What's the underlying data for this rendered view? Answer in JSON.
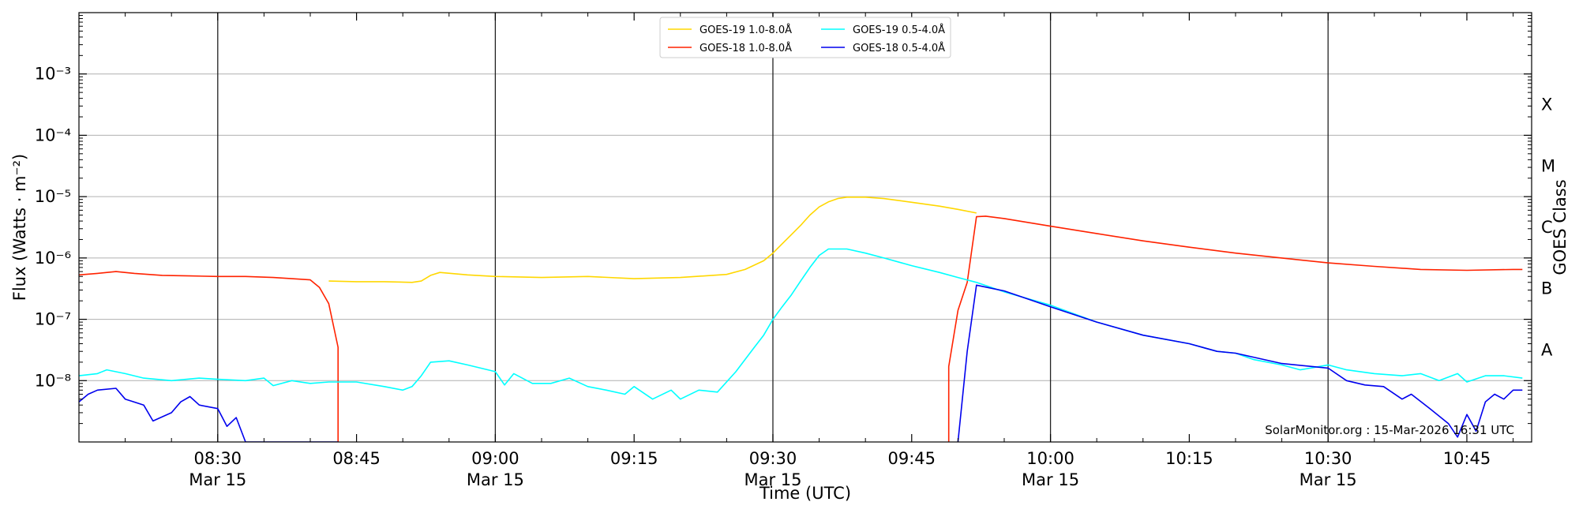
{
  "chart_data": {
    "type": "line",
    "title": "",
    "xlabel": "Time (UTC)",
    "ylabel": "Flux (Watts · m⁻²)",
    "ylabel_right": "GOES Class",
    "y_scale": "log",
    "ylim": [
      1e-09,
      0.01
    ],
    "xlim": [
      "08:15",
      "10:52"
    ],
    "grid": {
      "horizontal": true,
      "vertical_major": true
    },
    "y_ticks": [
      {
        "value": 1e-08,
        "label": "10⁻⁸"
      },
      {
        "value": 1e-07,
        "label": "10⁻⁷"
      },
      {
        "value": 1e-06,
        "label": "10⁻⁶"
      },
      {
        "value": 1e-05,
        "label": "10⁻⁵"
      },
      {
        "value": 0.0001,
        "label": "10⁻⁴"
      },
      {
        "value": 0.001,
        "label": "10⁻³"
      }
    ],
    "x_ticks": [
      {
        "time": "08:30",
        "label": "08:30",
        "sublabel": "Mar 15",
        "major": true
      },
      {
        "time": "08:45",
        "label": "08:45",
        "sublabel": "",
        "major": false
      },
      {
        "time": "09:00",
        "label": "09:00",
        "sublabel": "Mar 15",
        "major": true
      },
      {
        "time": "09:15",
        "label": "09:15",
        "sublabel": "",
        "major": false
      },
      {
        "time": "09:30",
        "label": "09:30",
        "sublabel": "Mar 15",
        "major": true
      },
      {
        "time": "09:45",
        "label": "09:45",
        "sublabel": "",
        "major": false
      },
      {
        "time": "10:00",
        "label": "10:00",
        "sublabel": "Mar 15",
        "major": true
      },
      {
        "time": "10:15",
        "label": "10:15",
        "sublabel": "",
        "major": false
      },
      {
        "time": "10:30",
        "label": "10:30",
        "sublabel": "Mar 15",
        "major": true
      },
      {
        "time": "10:45",
        "label": "10:45",
        "sublabel": "",
        "major": false
      }
    ],
    "goes_classes": [
      {
        "label": "A",
        "value": 3.16e-08
      },
      {
        "label": "B",
        "value": 3.16e-07
      },
      {
        "label": "C",
        "value": 3.16e-06
      },
      {
        "label": "M",
        "value": 3.16e-05
      },
      {
        "label": "X",
        "value": 0.000316
      }
    ],
    "legend": {
      "placement": "top-center",
      "columns": 2
    },
    "credit": "SolarMonitor.org : 15-Mar-2026 16:31 UTC",
    "series": [
      {
        "name": "GOES-19 1.0-8.0Å",
        "color": "#ffd700",
        "points": [
          [
            "08:42",
            4.2e-07
          ],
          [
            "08:45",
            4.1e-07
          ],
          [
            "08:48",
            4.1e-07
          ],
          [
            "08:51",
            4e-07
          ],
          [
            "08:52",
            4.2e-07
          ],
          [
            "08:53",
            5.2e-07
          ],
          [
            "08:54",
            5.8e-07
          ],
          [
            "08:57",
            5.3e-07
          ],
          [
            "09:00",
            5e-07
          ],
          [
            "09:05",
            4.8e-07
          ],
          [
            "09:10",
            5e-07
          ],
          [
            "09:15",
            4.6e-07
          ],
          [
            "09:20",
            4.8e-07
          ],
          [
            "09:25",
            5.4e-07
          ],
          [
            "09:27",
            6.5e-07
          ],
          [
            "09:29",
            9e-07
          ],
          [
            "09:30",
            1.2e-06
          ],
          [
            "09:31",
            1.7e-06
          ],
          [
            "09:32",
            2.4e-06
          ],
          [
            "09:33",
            3.4e-06
          ],
          [
            "09:34",
            5e-06
          ],
          [
            "09:35",
            6.8e-06
          ],
          [
            "09:36",
            8.2e-06
          ],
          [
            "09:37",
            9.3e-06
          ],
          [
            "09:38",
            9.8e-06
          ],
          [
            "09:40",
            9.8e-06
          ],
          [
            "09:42",
            9.3e-06
          ],
          [
            "09:45",
            8.1e-06
          ],
          [
            "09:48",
            7e-06
          ],
          [
            "09:50",
            6.2e-06
          ],
          [
            "09:52",
            5.4e-06
          ]
        ]
      },
      {
        "name": "GOES-18 1.0-8.0Å",
        "color": "#ff2200",
        "points": [
          [
            "08:15",
            5.3e-07
          ],
          [
            "08:17",
            5.6e-07
          ],
          [
            "08:19",
            6e-07
          ],
          [
            "08:21",
            5.6e-07
          ],
          [
            "08:24",
            5.2e-07
          ],
          [
            "08:27",
            5.1e-07
          ],
          [
            "08:30",
            5e-07
          ],
          [
            "08:33",
            5e-07
          ],
          [
            "08:36",
            4.8e-07
          ],
          [
            "08:39",
            4.5e-07
          ],
          [
            "08:40",
            4.4e-07
          ],
          [
            "08:41",
            3.3e-07
          ],
          [
            "08:42",
            1.8e-07
          ],
          [
            "08:43",
            3.5e-08
          ],
          [
            "08:43",
            1e-09
          ],
          null,
          [
            "09:49",
            1e-09
          ],
          [
            "09:49",
            1.7e-08
          ],
          [
            "09:50",
            1.4e-07
          ],
          [
            "09:51",
            4e-07
          ],
          [
            "09:52",
            4.7e-06
          ],
          [
            "09:53",
            4.8e-06
          ],
          [
            "09:55",
            4.4e-06
          ],
          [
            "10:00",
            3.3e-06
          ],
          [
            "10:05",
            2.5e-06
          ],
          [
            "10:10",
            1.9e-06
          ],
          [
            "10:15",
            1.5e-06
          ],
          [
            "10:20",
            1.2e-06
          ],
          [
            "10:25",
            1e-06
          ],
          [
            "10:30",
            8.3e-07
          ],
          [
            "10:35",
            7.3e-07
          ],
          [
            "10:40",
            6.5e-07
          ],
          [
            "10:45",
            6.3e-07
          ],
          [
            "10:50",
            6.5e-07
          ],
          [
            "10:51",
            6.5e-07
          ]
        ]
      },
      {
        "name": "GOES-19 0.5-4.0Å",
        "color": "#00ffff",
        "points": [
          [
            "08:15",
            1.2e-08
          ],
          [
            "08:17",
            1.3e-08
          ],
          [
            "08:18",
            1.5e-08
          ],
          [
            "08:20",
            1.3e-08
          ],
          [
            "08:22",
            1.1e-08
          ],
          [
            "08:25",
            1e-08
          ],
          [
            "08:28",
            1.1e-08
          ],
          [
            "08:30",
            1.05e-08
          ],
          [
            "08:33",
            1e-08
          ],
          [
            "08:35",
            1.1e-08
          ],
          [
            "08:36",
            8.3e-09
          ],
          [
            "08:38",
            1e-08
          ],
          [
            "08:40",
            9e-09
          ],
          [
            "08:42",
            9.5e-09
          ],
          [
            "08:45",
            9.5e-09
          ],
          [
            "08:48",
            8e-09
          ],
          [
            "08:50",
            7e-09
          ],
          [
            "08:51",
            8e-09
          ],
          [
            "08:52",
            1.2e-08
          ],
          [
            "08:53",
            2e-08
          ],
          [
            "08:55",
            2.1e-08
          ],
          [
            "08:57",
            1.8e-08
          ],
          [
            "09:00",
            1.4e-08
          ],
          [
            "09:01",
            8.5e-09
          ],
          [
            "09:02",
            1.3e-08
          ],
          [
            "09:04",
            9e-09
          ],
          [
            "09:06",
            9e-09
          ],
          [
            "09:08",
            1.1e-08
          ],
          [
            "09:10",
            8e-09
          ],
          [
            "09:12",
            7e-09
          ],
          [
            "09:14",
            6e-09
          ],
          [
            "09:15",
            8e-09
          ],
          [
            "09:17",
            5e-09
          ],
          [
            "09:19",
            7e-09
          ],
          [
            "09:20",
            5e-09
          ],
          [
            "09:22",
            7e-09
          ],
          [
            "09:24",
            6.5e-09
          ],
          [
            "09:26",
            1.4e-08
          ],
          [
            "09:28",
            3.5e-08
          ],
          [
            "09:29",
            5.5e-08
          ],
          [
            "09:30",
            1e-07
          ],
          [
            "09:31",
            1.6e-07
          ],
          [
            "09:32",
            2.5e-07
          ],
          [
            "09:33",
            4.2e-07
          ],
          [
            "09:34",
            7e-07
          ],
          [
            "09:35",
            1.1e-06
          ],
          [
            "09:36",
            1.4e-06
          ],
          [
            "09:38",
            1.4e-06
          ],
          [
            "09:40",
            1.2e-06
          ],
          [
            "09:42",
            1e-06
          ],
          [
            "09:45",
            7.5e-07
          ],
          [
            "09:48",
            5.8e-07
          ],
          [
            "09:50",
            4.8e-07
          ],
          [
            "09:52",
            4e-07
          ],
          [
            "09:55",
            2.8e-07
          ],
          [
            "10:00",
            1.7e-07
          ],
          [
            "10:05",
            9e-08
          ],
          [
            "10:10",
            5.5e-08
          ],
          [
            "10:15",
            4e-08
          ],
          [
            "10:18",
            3e-08
          ],
          [
            "10:20",
            2.8e-08
          ],
          [
            "10:22",
            2.2e-08
          ],
          [
            "10:25",
            1.8e-08
          ],
          [
            "10:27",
            1.5e-08
          ],
          [
            "10:30",
            1.8e-08
          ],
          [
            "10:32",
            1.5e-08
          ],
          [
            "10:35",
            1.3e-08
          ],
          [
            "10:38",
            1.2e-08
          ],
          [
            "10:40",
            1.3e-08
          ],
          [
            "10:42",
            1e-08
          ],
          [
            "10:44",
            1.3e-08
          ],
          [
            "10:45",
            9.5e-09
          ],
          [
            "10:47",
            1.2e-08
          ],
          [
            "10:49",
            1.2e-08
          ],
          [
            "10:51",
            1.1e-08
          ]
        ]
      },
      {
        "name": "GOES-18 0.5-4.0Å",
        "color": "#0000ee",
        "points": [
          [
            "08:15",
            4.5e-09
          ],
          [
            "08:16",
            6e-09
          ],
          [
            "08:17",
            7e-09
          ],
          [
            "08:19",
            7.5e-09
          ],
          [
            "08:20",
            5e-09
          ],
          [
            "08:22",
            4e-09
          ],
          [
            "08:23",
            2.2e-09
          ],
          [
            "08:25",
            3e-09
          ],
          [
            "08:26",
            4.5e-09
          ],
          [
            "08:27",
            5.5e-09
          ],
          [
            "08:28",
            4e-09
          ],
          [
            "08:30",
            3.5e-09
          ],
          [
            "08:31",
            1.8e-09
          ],
          [
            "08:32",
            2.5e-09
          ],
          [
            "08:33",
            1e-09
          ],
          [
            "08:43",
            1e-09
          ],
          null,
          [
            "09:50",
            1e-09
          ],
          [
            "09:51",
            3e-08
          ],
          [
            "09:52",
            3.6e-07
          ],
          [
            "09:55",
            2.9e-07
          ],
          [
            "10:00",
            1.6e-07
          ],
          [
            "10:05",
            9e-08
          ],
          [
            "10:10",
            5.5e-08
          ],
          [
            "10:15",
            4e-08
          ],
          [
            "10:18",
            3e-08
          ],
          [
            "10:20",
            2.8e-08
          ],
          [
            "10:25",
            1.9e-08
          ],
          [
            "10:30",
            1.6e-08
          ],
          [
            "10:32",
            1e-08
          ],
          [
            "10:34",
            8.5e-09
          ],
          [
            "10:36",
            8e-09
          ],
          [
            "10:38",
            5e-09
          ],
          [
            "10:39",
            6e-09
          ],
          [
            "10:41",
            3.5e-09
          ],
          [
            "10:43",
            2e-09
          ],
          [
            "10:44",
            1.2e-09
          ],
          [
            "10:45",
            2.8e-09
          ],
          [
            "10:46",
            1.5e-09
          ],
          [
            "10:47",
            4.5e-09
          ],
          [
            "10:48",
            6e-09
          ],
          [
            "10:49",
            5e-09
          ],
          [
            "10:50",
            7e-09
          ],
          [
            "10:51",
            7e-09
          ]
        ]
      }
    ]
  }
}
